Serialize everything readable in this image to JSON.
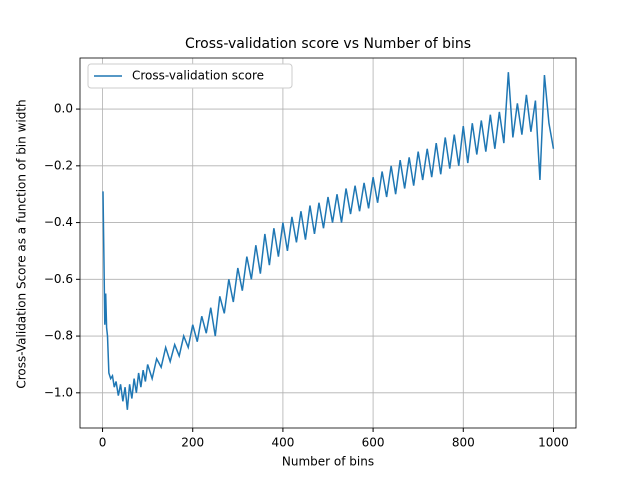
{
  "chart_data": {
    "type": "line",
    "title": "Cross-validation score vs Number of bins",
    "x_label": "Number of bins",
    "y_label": "Cross-Validation Score as a function of bin width",
    "grid": true,
    "legend": "upper left",
    "xlim": [
      -50,
      1050
    ],
    "ylim": [
      -1.124,
      0.18
    ],
    "xticks": [
      0,
      200,
      400,
      600,
      800,
      1000
    ],
    "yticks": [
      {
        "value": -1.0,
        "label": "−1.0"
      },
      {
        "value": -0.8,
        "label": "−0.8"
      },
      {
        "value": -0.6,
        "label": "−0.6"
      },
      {
        "value": -0.4,
        "label": "−0.4"
      },
      {
        "value": -0.2,
        "label": "−0.2"
      },
      {
        "value": 0.0,
        "label": "0.0"
      }
    ],
    "x": [
      1,
      3,
      5,
      7,
      9,
      11,
      14,
      18,
      22,
      26,
      30,
      35,
      40,
      45,
      50,
      55,
      60,
      65,
      70,
      75,
      80,
      85,
      90,
      95,
      100,
      110,
      120,
      130,
      140,
      150,
      160,
      170,
      180,
      190,
      200,
      210,
      220,
      230,
      240,
      250,
      260,
      270,
      280,
      290,
      300,
      310,
      320,
      330,
      340,
      350,
      360,
      370,
      380,
      390,
      400,
      410,
      420,
      430,
      440,
      450,
      460,
      470,
      480,
      490,
      500,
      510,
      520,
      530,
      540,
      550,
      560,
      570,
      580,
      590,
      600,
      610,
      620,
      630,
      640,
      650,
      660,
      670,
      680,
      690,
      700,
      710,
      720,
      730,
      740,
      750,
      760,
      770,
      780,
      790,
      800,
      810,
      820,
      830,
      840,
      850,
      860,
      870,
      880,
      890,
      900,
      910,
      920,
      930,
      940,
      950,
      960,
      970,
      980,
      990,
      1000
    ],
    "series": [
      {
        "name": "Cross-validation score",
        "color": "#1f77b4",
        "values": [
          -0.29,
          -0.52,
          -0.76,
          -0.65,
          -0.77,
          -0.8,
          -0.93,
          -0.95,
          -0.94,
          -0.98,
          -0.96,
          -1.01,
          -0.97,
          -1.03,
          -0.98,
          -1.06,
          -0.97,
          -1.02,
          -0.95,
          -1.0,
          -0.93,
          -0.98,
          -0.92,
          -0.96,
          -0.9,
          -0.95,
          -0.88,
          -0.91,
          -0.84,
          -0.89,
          -0.83,
          -0.87,
          -0.8,
          -0.84,
          -0.76,
          -0.82,
          -0.73,
          -0.79,
          -0.7,
          -0.8,
          -0.66,
          -0.72,
          -0.6,
          -0.68,
          -0.56,
          -0.64,
          -0.52,
          -0.6,
          -0.48,
          -0.58,
          -0.44,
          -0.55,
          -0.42,
          -0.52,
          -0.4,
          -0.5,
          -0.38,
          -0.47,
          -0.36,
          -0.46,
          -0.34,
          -0.44,
          -0.33,
          -0.42,
          -0.31,
          -0.4,
          -0.3,
          -0.4,
          -0.28,
          -0.37,
          -0.27,
          -0.36,
          -0.26,
          -0.35,
          -0.24,
          -0.33,
          -0.22,
          -0.31,
          -0.2,
          -0.3,
          -0.18,
          -0.28,
          -0.17,
          -0.27,
          -0.15,
          -0.25,
          -0.14,
          -0.24,
          -0.12,
          -0.23,
          -0.1,
          -0.21,
          -0.09,
          -0.2,
          -0.06,
          -0.19,
          -0.05,
          -0.16,
          -0.04,
          -0.15,
          -0.02,
          -0.14,
          -0.01,
          -0.12,
          0.13,
          -0.1,
          0.02,
          -0.09,
          0.05,
          -0.08,
          0.03,
          -0.25,
          0.12,
          -0.05,
          -0.14
        ]
      }
    ]
  }
}
